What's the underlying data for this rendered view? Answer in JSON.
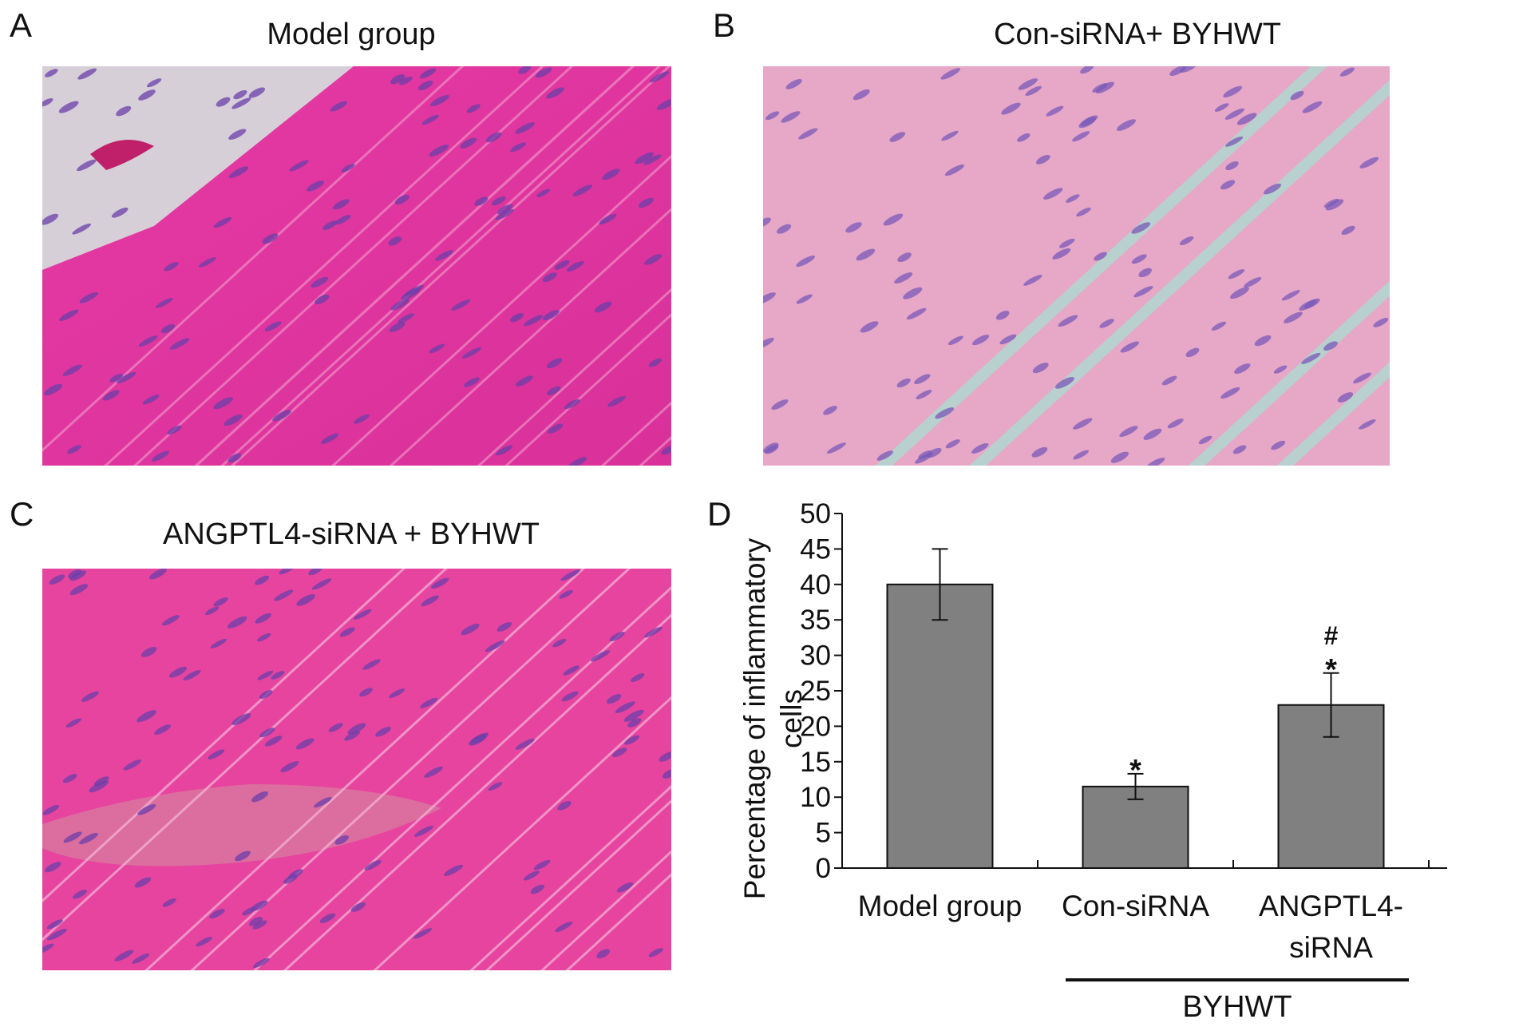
{
  "panels": {
    "a": {
      "letter": "A",
      "title": "Model group"
    },
    "b": {
      "letter": "B",
      "title": "Con-siRNA+ BYHWT"
    },
    "c": {
      "letter": "C",
      "title": "ANGPTL4-siRNA + BYHWT"
    },
    "d": {
      "letter": "D"
    }
  },
  "colors": {
    "tissue_pink": "#e0389c",
    "nuclei_purple": "#6b3fa8",
    "bar_fill": "#808080",
    "teal_gap": "#7fe0c8"
  },
  "chart_data": {
    "type": "bar",
    "title": "",
    "categories": [
      "Model group",
      "Con-siRNA",
      "ANGPTL4-siRNA"
    ],
    "category_label_lines": [
      [
        "Model group"
      ],
      [
        "Con-siRNA"
      ],
      [
        "ANGPTL4-",
        "siRNA"
      ]
    ],
    "values": [
      40,
      11.5,
      23
    ],
    "errors": [
      5,
      1.8,
      4.5
    ],
    "significance": [
      "",
      "*",
      "#*"
    ],
    "ylabel_lines": [
      "Percentage of inflammatory",
      "cells"
    ],
    "xlabel": "",
    "group_label": "BYHWT",
    "ylim": [
      0,
      50
    ],
    "yticks": [
      0,
      5,
      10,
      15,
      20,
      25,
      30,
      35,
      40,
      45,
      50
    ],
    "grid": false,
    "legend": "none"
  }
}
